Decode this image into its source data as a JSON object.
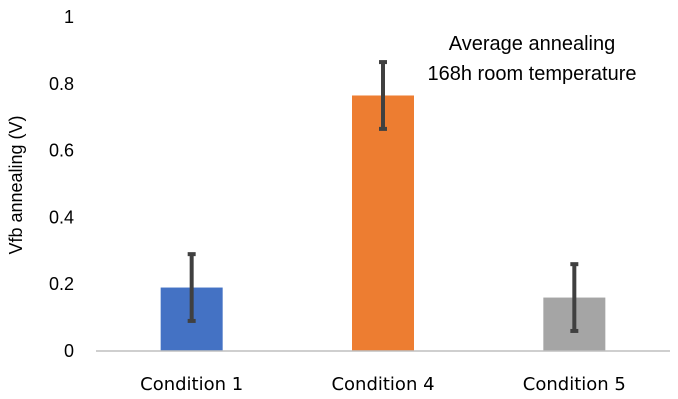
{
  "chart_data": {
    "type": "bar",
    "categories": [
      "Condition 1",
      "Condition 4",
      "Condition 5"
    ],
    "values": [
      0.19,
      0.765,
      0.16
    ],
    "error": [
      0.1,
      0.1,
      0.1
    ],
    "colors": [
      "#4472C4",
      "#ED7D31",
      "#A5A5A5"
    ],
    "errorbar_color": "#404040",
    "title": "",
    "xlabel": "",
    "ylabel": "Vfb annealing (V)",
    "ylim": [
      0,
      1
    ],
    "yticks": [
      "0",
      "0.2",
      "0.4",
      "0.6",
      "0.8",
      "1"
    ],
    "yticks_values": [
      0,
      0.2,
      0.4,
      0.6,
      0.8,
      1
    ],
    "grid": false,
    "annotations": [
      "Average annealing",
      "168h room temperature"
    ]
  }
}
